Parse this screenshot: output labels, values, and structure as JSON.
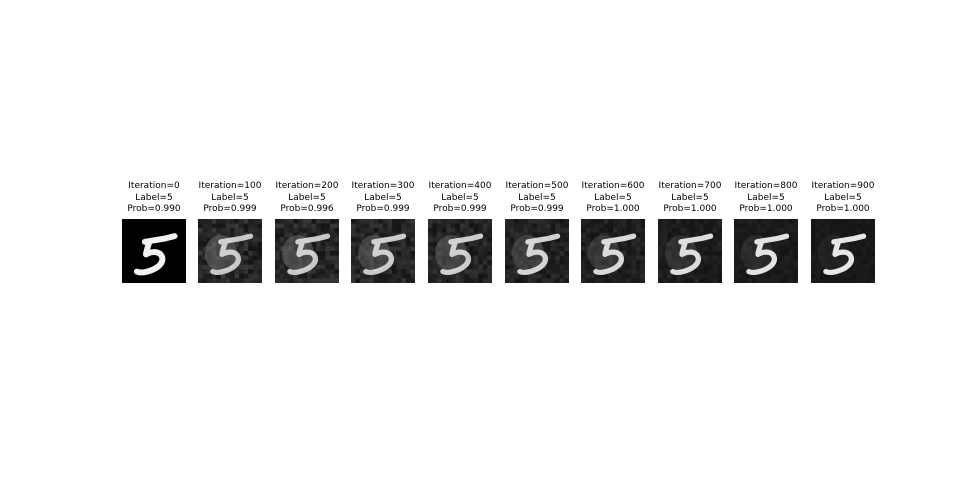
{
  "colors": {
    "background": "#ffffff",
    "text": "#000000",
    "original_digit_background": "#000000",
    "perturbed_digit_background": "#202020",
    "digit_stroke": "#f2f2f2"
  },
  "panels": [
    {
      "iteration": "Iteration=0",
      "label": "Label=5",
      "prob": "Prob=0.990",
      "noise_level": 0.0
    },
    {
      "iteration": "Iteration=100",
      "label": "Label=5",
      "prob": "Prob=0.999",
      "noise_level": 0.85
    },
    {
      "iteration": "Iteration=200",
      "label": "Label=5",
      "prob": "Prob=0.996",
      "noise_level": 0.8
    },
    {
      "iteration": "Iteration=300",
      "label": "Label=5",
      "prob": "Prob=0.999",
      "noise_level": 0.75
    },
    {
      "iteration": "Iteration=400",
      "label": "Label=5",
      "prob": "Prob=0.999",
      "noise_level": 0.7
    },
    {
      "iteration": "Iteration=500",
      "label": "Label=5",
      "prob": "Prob=0.999",
      "noise_level": 0.6
    },
    {
      "iteration": "Iteration=600",
      "label": "Label=5",
      "prob": "Prob=1.000",
      "noise_level": 0.5
    },
    {
      "iteration": "Iteration=700",
      "label": "Label=5",
      "prob": "Prob=1.000",
      "noise_level": 0.4
    },
    {
      "iteration": "Iteration=800",
      "label": "Label=5",
      "prob": "Prob=1.000",
      "noise_level": 0.3
    },
    {
      "iteration": "Iteration=900",
      "label": "Label=5",
      "prob": "Prob=1.000",
      "noise_level": 0.2
    }
  ]
}
